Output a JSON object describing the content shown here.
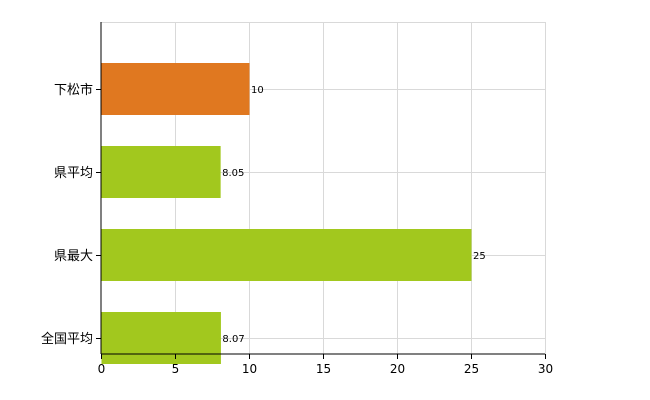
{
  "chart_data": {
    "type": "bar",
    "orientation": "horizontal",
    "categories": [
      "下松市",
      "県平均",
      "県最大",
      "全国平均"
    ],
    "values": [
      10,
      8.05,
      25,
      8.07
    ],
    "value_labels": [
      "10",
      "8.05",
      "25",
      "8.07"
    ],
    "xlim": [
      0,
      30
    ],
    "x_ticks": [
      "0",
      "5",
      "10",
      "15",
      "20",
      "25",
      "30"
    ],
    "grid": true,
    "legend": "none",
    "colors": [
      "#E07820",
      "#A2C81E",
      "#A2C81E",
      "#A2C81E"
    ]
  }
}
